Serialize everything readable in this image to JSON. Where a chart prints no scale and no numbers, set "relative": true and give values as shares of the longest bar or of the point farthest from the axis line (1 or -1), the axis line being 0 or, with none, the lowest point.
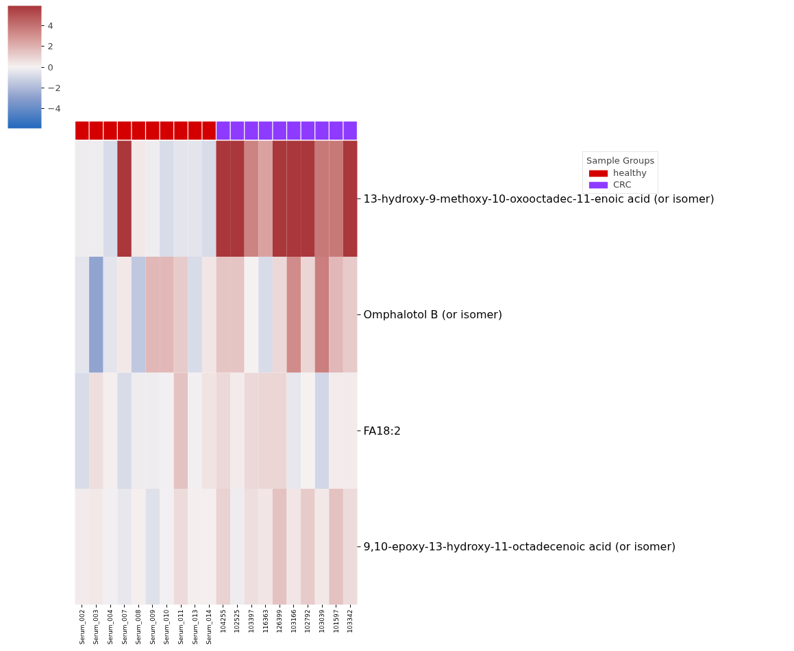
{
  "chart_data": [
    {
      "type": "bar",
      "relative": true,
      "tick_labels": false,
      "categories": [
        "Serum_002",
        "Serum_003",
        "Serum_004",
        "Serum_007",
        "Serum_008",
        "Serum_009",
        "Serum_010",
        "Serum_011",
        "Serum_013",
        "Serum_014",
        "104255",
        "102525",
        "103397",
        "116363",
        "126399",
        "103166",
        "102792",
        "103039",
        "101597",
        "103342"
      ],
      "series": [
        {
          "name": "healthy",
          "color": "#d40000",
          "values": [
            1,
            1,
            1,
            1,
            1,
            1,
            1,
            1,
            1,
            1,
            null,
            null,
            null,
            null,
            null,
            null,
            null,
            null,
            null,
            null
          ]
        },
        {
          "name": "CRC",
          "color": "#8e3bff",
          "values": [
            null,
            null,
            null,
            null,
            null,
            null,
            null,
            null,
            null,
            null,
            1,
            1,
            1,
            1,
            1,
            1,
            1,
            1,
            1,
            1
          ]
        }
      ],
      "legend_title": "Sample Groups",
      "legend": "bottom right"
    },
    {
      "type": "heatmap",
      "categories": [
        "Serum_002",
        "Serum_003",
        "Serum_004",
        "Serum_007",
        "Serum_008",
        "Serum_009",
        "Serum_010",
        "Serum_011",
        "Serum_013",
        "Serum_014",
        "104255",
        "102525",
        "103397",
        "116363",
        "126399",
        "103166",
        "102792",
        "103039",
        "101597",
        "103342"
      ],
      "y_categories": [
        "13-hydroxy-9-methoxy-10-oxooctadec-11-enoic acid (or isomer)",
        "Omphalotol B (or isomer)",
        "FA18:2",
        "9,10-epoxy-13-hydroxy-11-octadecenoic acid (or isomer)"
      ],
      "cells": [
        [
          -0.2,
          -0.2,
          -0.8,
          5.9,
          0.3,
          -0.2,
          -0.8,
          -0.5,
          -0.5,
          -0.8,
          5.9,
          5.9,
          3.5,
          2.5,
          5.9,
          5.9,
          5.9,
          3.8,
          3.8,
          5.9
        ],
        [
          -0.5,
          -2.8,
          -0.5,
          0.3,
          -1.5,
          1.8,
          1.8,
          1.2,
          -0.8,
          0.4,
          1.4,
          1.4,
          0,
          -0.8,
          0.8,
          3.2,
          0.9,
          3.6,
          1.8,
          1.2
        ],
        [
          -0.8,
          0.6,
          0.1,
          -0.8,
          -0.2,
          -0.2,
          -0.1,
          1.5,
          -0.1,
          0.5,
          0.8,
          0.2,
          0.8,
          0.9,
          0.9,
          -0.4,
          0,
          -1.0,
          0.2,
          0.2
        ],
        [
          0.2,
          0.3,
          -0.1,
          -0.4,
          0.1,
          -0.6,
          -0.1,
          0.7,
          0.1,
          0.1,
          1.0,
          -0.2,
          0.6,
          0.4,
          1.5,
          0.4,
          1.2,
          0.3,
          1.5,
          0.7
        ]
      ],
      "clim": [
        -5.9,
        5.9
      ],
      "cticks": [
        {
          "value": -4,
          "label": "−4"
        },
        {
          "value": -2,
          "label": "−2"
        },
        0,
        2,
        4
      ]
    }
  ]
}
